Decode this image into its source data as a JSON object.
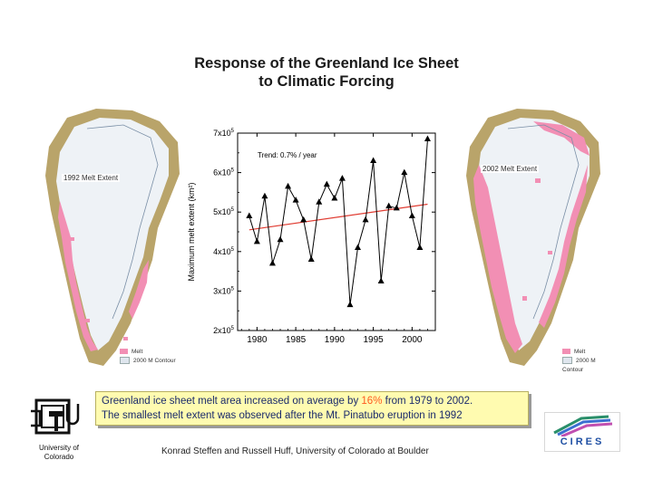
{
  "title": {
    "line1": "Response of the Greenland Ice Sheet",
    "line2": "to Climatic Forcing"
  },
  "maps": {
    "left": {
      "extent_label": "1992 Melt Extent",
      "legend_melt": "Melt",
      "legend_contour": "2000 M Contour"
    },
    "right": {
      "extent_label": "2002 Melt Extent",
      "legend_melt": "Melt",
      "legend_contour": "2000 M Contour"
    }
  },
  "colors": {
    "melt": "#f28fb4",
    "ice": "#eef2f6",
    "land": "#b9a46a",
    "trend": "#e03c32",
    "series": "#000000"
  },
  "chart_data": {
    "type": "line",
    "title": "",
    "annotation": "Trend: 0.7% / year",
    "xlabel": "",
    "ylabel": "Maximum melt extent (km²)",
    "xlim": [
      1977.5,
      2003
    ],
    "ylim": [
      200000,
      700000
    ],
    "x_ticks": [
      1980,
      1985,
      1990,
      1995,
      2000
    ],
    "x_tick_labels": [
      "1980",
      "1985",
      "1990",
      "1995",
      "2000"
    ],
    "y_ticks": [
      200000,
      300000,
      400000,
      500000,
      600000,
      700000
    ],
    "y_tick_labels": [
      {
        "base": "2x10",
        "exp": "5"
      },
      {
        "base": "3x10",
        "exp": "5"
      },
      {
        "base": "4x10",
        "exp": "5"
      },
      {
        "base": "5x10",
        "exp": "5"
      },
      {
        "base": "6x10",
        "exp": "5"
      },
      {
        "base": "7x10",
        "exp": "5"
      }
    ],
    "series": [
      {
        "name": "Maximum melt extent",
        "x": [
          1979,
          1980,
          1981,
          1982,
          1983,
          1984,
          1985,
          1986,
          1987,
          1988,
          1989,
          1990,
          1991,
          1992,
          1993,
          1994,
          1995,
          1996,
          1997,
          1998,
          1999,
          2000,
          2001,
          2002
        ],
        "values": [
          490000,
          425000,
          540000,
          370000,
          430000,
          565000,
          530000,
          480000,
          380000,
          525000,
          570000,
          535000,
          585000,
          265000,
          410000,
          480000,
          630000,
          325000,
          515000,
          510000,
          600000,
          490000,
          410000,
          685000
        ]
      }
    ],
    "trend_line": {
      "x": [
        1979,
        2002
      ],
      "values": [
        455000,
        520000
      ]
    }
  },
  "caption": {
    "line1_a": "Greenland ice sheet melt area increased on average by ",
    "line1_b": "16%",
    "line1_c": " from 1979 to 2002.",
    "line2": "The smallest melt extent was observed after the Mt. Pinatubo eruption in 1992"
  },
  "logos": {
    "cu_line1": "University of",
    "cu_line2": "Colorado",
    "cires": "CIRES"
  },
  "footer": "Konrad Steffen and Russell Huff, University of Colorado at Boulder"
}
